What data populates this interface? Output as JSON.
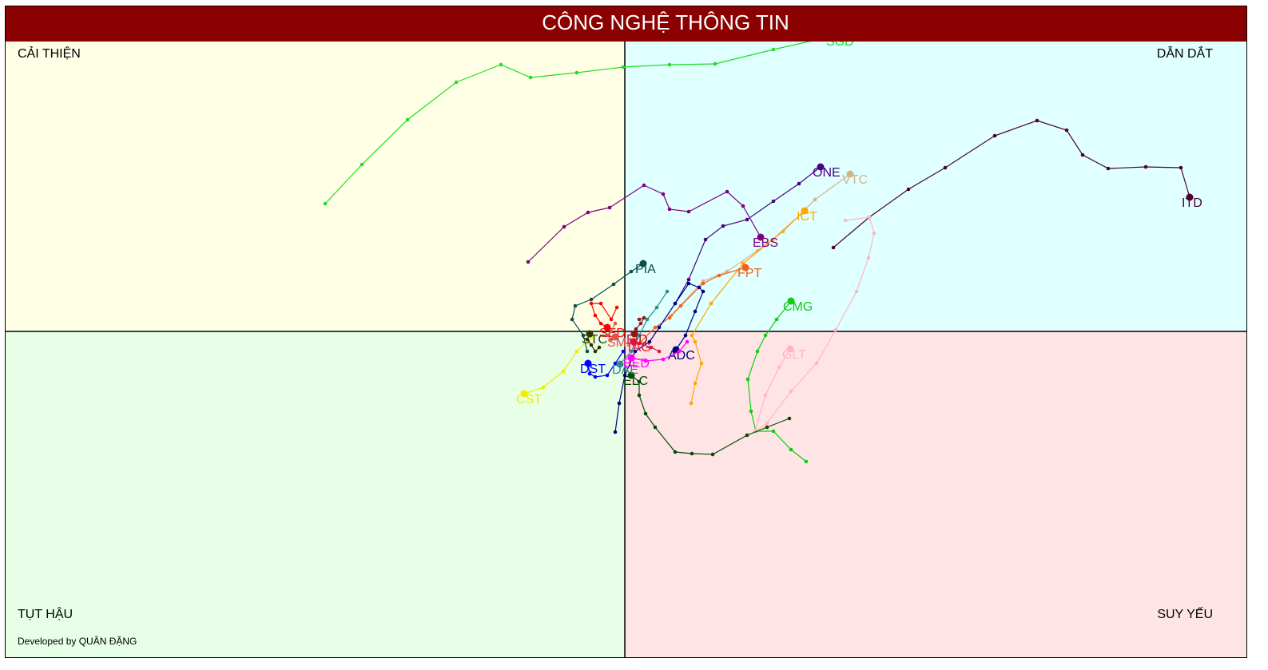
{
  "chart_data": {
    "type": "line",
    "title": "CÔNG NGHỆ THÔNG TIN",
    "credit": "Developed by QUÂN ĐẶNG",
    "xlim": [
      61.25,
      138.9
    ],
    "ylim": [
      79.6,
      120.4
    ],
    "reference_lines": {
      "x": 100,
      "y": 100
    },
    "quadrants": [
      {
        "label": "CẢI THIỆN",
        "corner": "top-left",
        "color": "#ffffe6"
      },
      {
        "label": "DẪN DẮT",
        "corner": "top-right",
        "color": "#e0ffff"
      },
      {
        "label": "TỤT HẬU",
        "corner": "bottom-left",
        "color": "#e6ffe6"
      },
      {
        "label": "SUY YẾU",
        "corner": "bottom-right",
        "color": "#ffe4e6"
      }
    ],
    "series": [
      {
        "name": "SGD",
        "color": "#22dd22",
        "x": [
          81.25,
          83.55,
          86.4,
          89.45,
          92.25,
          94.1,
          97,
          99.9,
          102.8,
          105.65,
          109.3,
          113.1
        ],
        "y": [
          108,
          110.45,
          113.25,
          115.6,
          116.7,
          115.9,
          116.2,
          116.55,
          116.7,
          116.75,
          117.65,
          118.5
        ]
      },
      {
        "name": "ITD",
        "color": "#4b0033",
        "x": [
          113.05,
          115.3,
          117.75,
          120.05,
          123.15,
          125.8,
          127.65,
          128.65,
          130.25,
          132.6,
          134.8,
          135.35
        ],
        "y": [
          105.25,
          107.15,
          108.9,
          110.25,
          112.25,
          113.2,
          112.6,
          111.05,
          110.2,
          110.3,
          110.25,
          108.4
        ]
      },
      {
        "name": "ONE",
        "color": "#4b0082",
        "x": [
          103.15,
          104,
          105.05,
          106.15,
          107.65,
          109.3,
          110.9,
          112.25
        ],
        "y": [
          101.75,
          103.25,
          105.75,
          106.6,
          107,
          108.15,
          109.25,
          110.3
        ]
      },
      {
        "name": "VTC",
        "color": "#d2b48c",
        "x": [
          102.9,
          104.9,
          106.4,
          108.3,
          109.9,
          111.9,
          114.1
        ],
        "y": [
          101,
          103.15,
          103.75,
          105.05,
          106.25,
          108.25,
          109.85
        ]
      },
      {
        "name": "ICT",
        "color": "#ffa500",
        "x": [
          104.15,
          104.4,
          104.8,
          104.4,
          104.2,
          105.4,
          107.4,
          109.25,
          111.25
        ],
        "y": [
          95.5,
          96.75,
          98,
          99.35,
          99.75,
          101.75,
          104.25,
          105.75,
          107.55
        ]
      },
      {
        "name": "EBS",
        "color": "#800080",
        "x": [
          93.95,
          96.2,
          97.7,
          99.05,
          101.2,
          102.4,
          102.8,
          104,
          106.4,
          107.4,
          108.5
        ],
        "y": [
          104.35,
          106.55,
          107.45,
          107.75,
          109.15,
          108.6,
          107.65,
          107.5,
          108.75,
          107.85,
          105.9
        ]
      },
      {
        "name": "FPT",
        "color": "#f06020",
        "x": [
          100.9,
          101.9,
          102.8,
          103.5,
          104.9,
          105.9,
          107.55
        ],
        "y": [
          99.25,
          100.25,
          100.85,
          101.6,
          103,
          103.5,
          104
        ]
      },
      {
        "name": "PIA",
        "color": "#0f4c4c",
        "x": [
          97.65,
          97.4,
          96.7,
          96.9,
          97.9,
          99.3,
          100.4,
          101.15
        ],
        "y": [
          98.75,
          99.75,
          100.75,
          101.6,
          102,
          102.95,
          103.75,
          104.25
        ]
      },
      {
        "name": "CMG",
        "color": "#11cc11",
        "x": [
          111.35,
          110.4,
          109.3,
          108.2,
          107.9,
          107.7,
          108.3,
          108.8,
          109.5,
          110.4
        ],
        "y": [
          91.85,
          92.6,
          93.75,
          93.75,
          95,
          97,
          98.75,
          99.75,
          100.75,
          101.9
        ]
      },
      {
        "name": "GLT",
        "color": "#ffb6c1",
        "x": [
          113.8,
          115.3,
          115.6,
          115.25,
          114.5,
          113.2,
          112,
          110.4,
          108.9,
          108.15,
          108.8,
          109.65,
          110.35
        ],
        "y": [
          106.95,
          107.15,
          106.15,
          104.6,
          102.5,
          100.1,
          98,
          96.25,
          94.25,
          93.75,
          96,
          97.75,
          98.9
        ]
      },
      {
        "name": "ELC",
        "color": "#004d00",
        "x": [
          110.3,
          108.9,
          107.65,
          105.5,
          104.2,
          103.15,
          101.9,
          101.3,
          100.9,
          100.9,
          100.4
        ],
        "y": [
          94.55,
          94,
          93.5,
          92.3,
          92.35,
          92.45,
          94,
          94.85,
          96,
          96.85,
          97.25
        ]
      },
      {
        "name": "ADC",
        "color": "#000080",
        "x": [
          99.4,
          99.65,
          100,
          100.65,
          101.55,
          102.15,
          103.15,
          104,
          104.65,
          104.9,
          104.4,
          103.8,
          103.2
        ],
        "y": [
          93.7,
          95.5,
          97.25,
          98.75,
          99.35,
          100.25,
          101.75,
          103,
          102.75,
          102.5,
          101.25,
          99.75,
          98.85
        ]
      },
      {
        "name": "DST",
        "color": "#0000ff",
        "x": [
          99.9,
          99.4,
          98.9,
          98.15,
          97.8,
          97.7
        ],
        "y": [
          98.75,
          98,
          97.25,
          97.15,
          97.35,
          98
        ]
      },
      {
        "name": "DAE",
        "color": "#2e8b8b",
        "x": [
          102.65,
          102,
          101.4,
          100.9,
          100.4,
          99.7
        ],
        "y": [
          102.5,
          101.5,
          100.75,
          99.75,
          98.75,
          97.95
        ]
      },
      {
        "name": "CST",
        "color": "#eeee00",
        "x": [
          97.9,
          97,
          96.15,
          94.9,
          93.7
        ],
        "y": [
          99.65,
          98.75,
          97.5,
          96.5,
          96.1
        ]
      },
      {
        "name": "SED",
        "color": "#ff0000",
        "x": [
          99.5,
          99.15,
          98.5,
          97.9,
          98.15,
          98.5,
          98.9
        ],
        "y": [
          101.5,
          100.75,
          101.75,
          101.75,
          101,
          100.5,
          100.25
        ]
      },
      {
        "name": "EID",
        "color": "#8b1a1a",
        "x": [
          100.9,
          101.2,
          101,
          100.7,
          100.6
        ],
        "y": [
          100.75,
          100.85,
          100.5,
          100.15,
          99.85
        ]
      },
      {
        "name": "STC",
        "color": "#333300",
        "x": [
          98.4,
          98.15,
          97.9,
          97.65,
          97.8
        ],
        "y": [
          99,
          98.75,
          99.15,
          99.5,
          99.85
        ]
      },
      {
        "name": "SMN",
        "color": "#e05050",
        "x": [
          99.4,
          99.15,
          98.9,
          99.15,
          99.4
        ],
        "y": [
          100.5,
          100,
          99.75,
          99.5,
          99.65
        ]
      },
      {
        "name": "TAG",
        "color": "#dc143c",
        "x": [
          102.15,
          101.65,
          100.9,
          100.55
        ],
        "y": [
          98.75,
          99,
          99.25,
          99.35
        ]
      },
      {
        "name": "BED",
        "color": "#ff00ff",
        "x": [
          103.9,
          103.4,
          102.4,
          101.3,
          100.4
        ],
        "y": [
          99.35,
          98.75,
          98.25,
          98.15,
          98.35
        ]
      }
    ]
  }
}
